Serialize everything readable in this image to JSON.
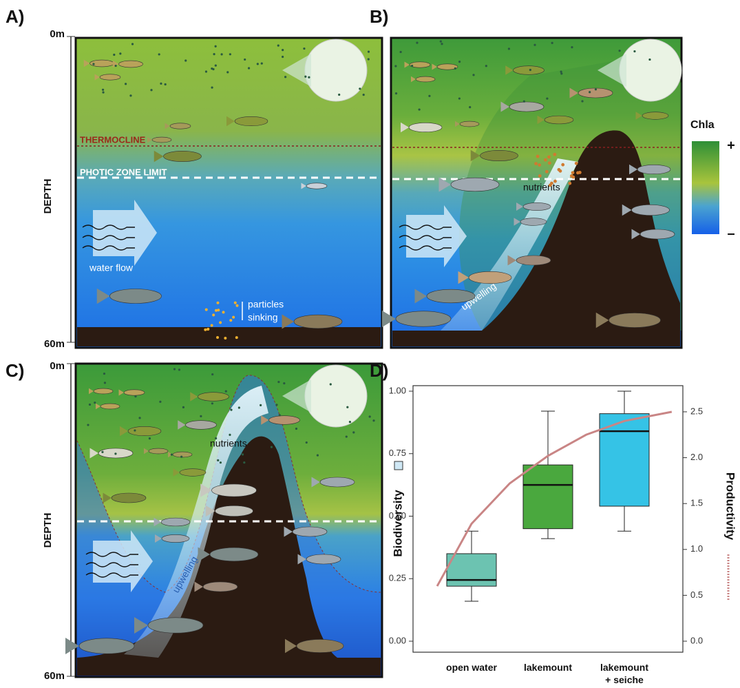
{
  "panel_a": {
    "label": "A)",
    "depth_top": "0m",
    "depth_bottom": "60m",
    "depth_title": "DEPTH",
    "thermocline": "THERMOCLINE",
    "photic_zone": "PHOTIC ZONE LIMIT",
    "water_flow": "water flow",
    "particles": "particles",
    "sinking": "sinking"
  },
  "panel_b": {
    "label": "B)",
    "nutrients": "nutrients",
    "upwelling": "upwelling",
    "legend_title": "Chla",
    "legend_high": "+",
    "legend_low": "–"
  },
  "panel_c": {
    "label": "C)",
    "depth_top": "0m",
    "depth_bottom": "60m",
    "depth_title": "DEPTH",
    "nutrients": "nutrients",
    "upwelling": "upwelling"
  },
  "panel_d": {
    "label": "D)"
  },
  "chart_data": {
    "type": "box",
    "y_label": "Biodiversity",
    "categories": [
      "open water",
      "lakemount",
      "lakemount + seiche"
    ],
    "boxes": [
      {
        "whisker_low": 0.16,
        "q1": 0.22,
        "median": 0.245,
        "q3": 0.35,
        "whisker_high": 0.44,
        "color": "#6cc3b1"
      },
      {
        "whisker_low": 0.41,
        "q1": 0.45,
        "median": 0.625,
        "q3": 0.705,
        "whisker_high": 0.92,
        "color": "#4aa83e"
      },
      {
        "whisker_low": 0.44,
        "q1": 0.54,
        "median": 0.84,
        "q3": 0.91,
        "whisker_high": 1.0,
        "color": "#35c3e6"
      }
    ],
    "lines": [
      {
        "name": "Productivity",
        "axis": "y2",
        "color": "#c98585",
        "x": [
          -0.45,
          0,
          0.5,
          1,
          1.5,
          2,
          2.62
        ],
        "values": [
          0.6,
          1.28,
          1.72,
          2.02,
          2.25,
          2.4,
          2.5
        ]
      }
    ],
    "ylim": [
      -0.044,
      1.022
    ],
    "yticks": [
      {
        "value": 0,
        "label": "0.00"
      },
      {
        "value": 0.25,
        "label": "0.25"
      },
      {
        "value": 0.5,
        "label": "0.50"
      },
      {
        "value": 0.75,
        "label": "0.75"
      },
      {
        "value": 1,
        "label": "1.00"
      }
    ],
    "y2lim": [
      -0.12,
      2.785
    ],
    "y2ticks": [
      {
        "value": 0,
        "label": "0.0"
      },
      {
        "value": 0.5,
        "label": "0.5"
      },
      {
        "value": 1,
        "label": "1.0"
      },
      {
        "value": 1.5,
        "label": "1.5"
      },
      {
        "value": 2,
        "label": "2.0"
      },
      {
        "value": 2.5,
        "label": "2.5"
      }
    ]
  }
}
